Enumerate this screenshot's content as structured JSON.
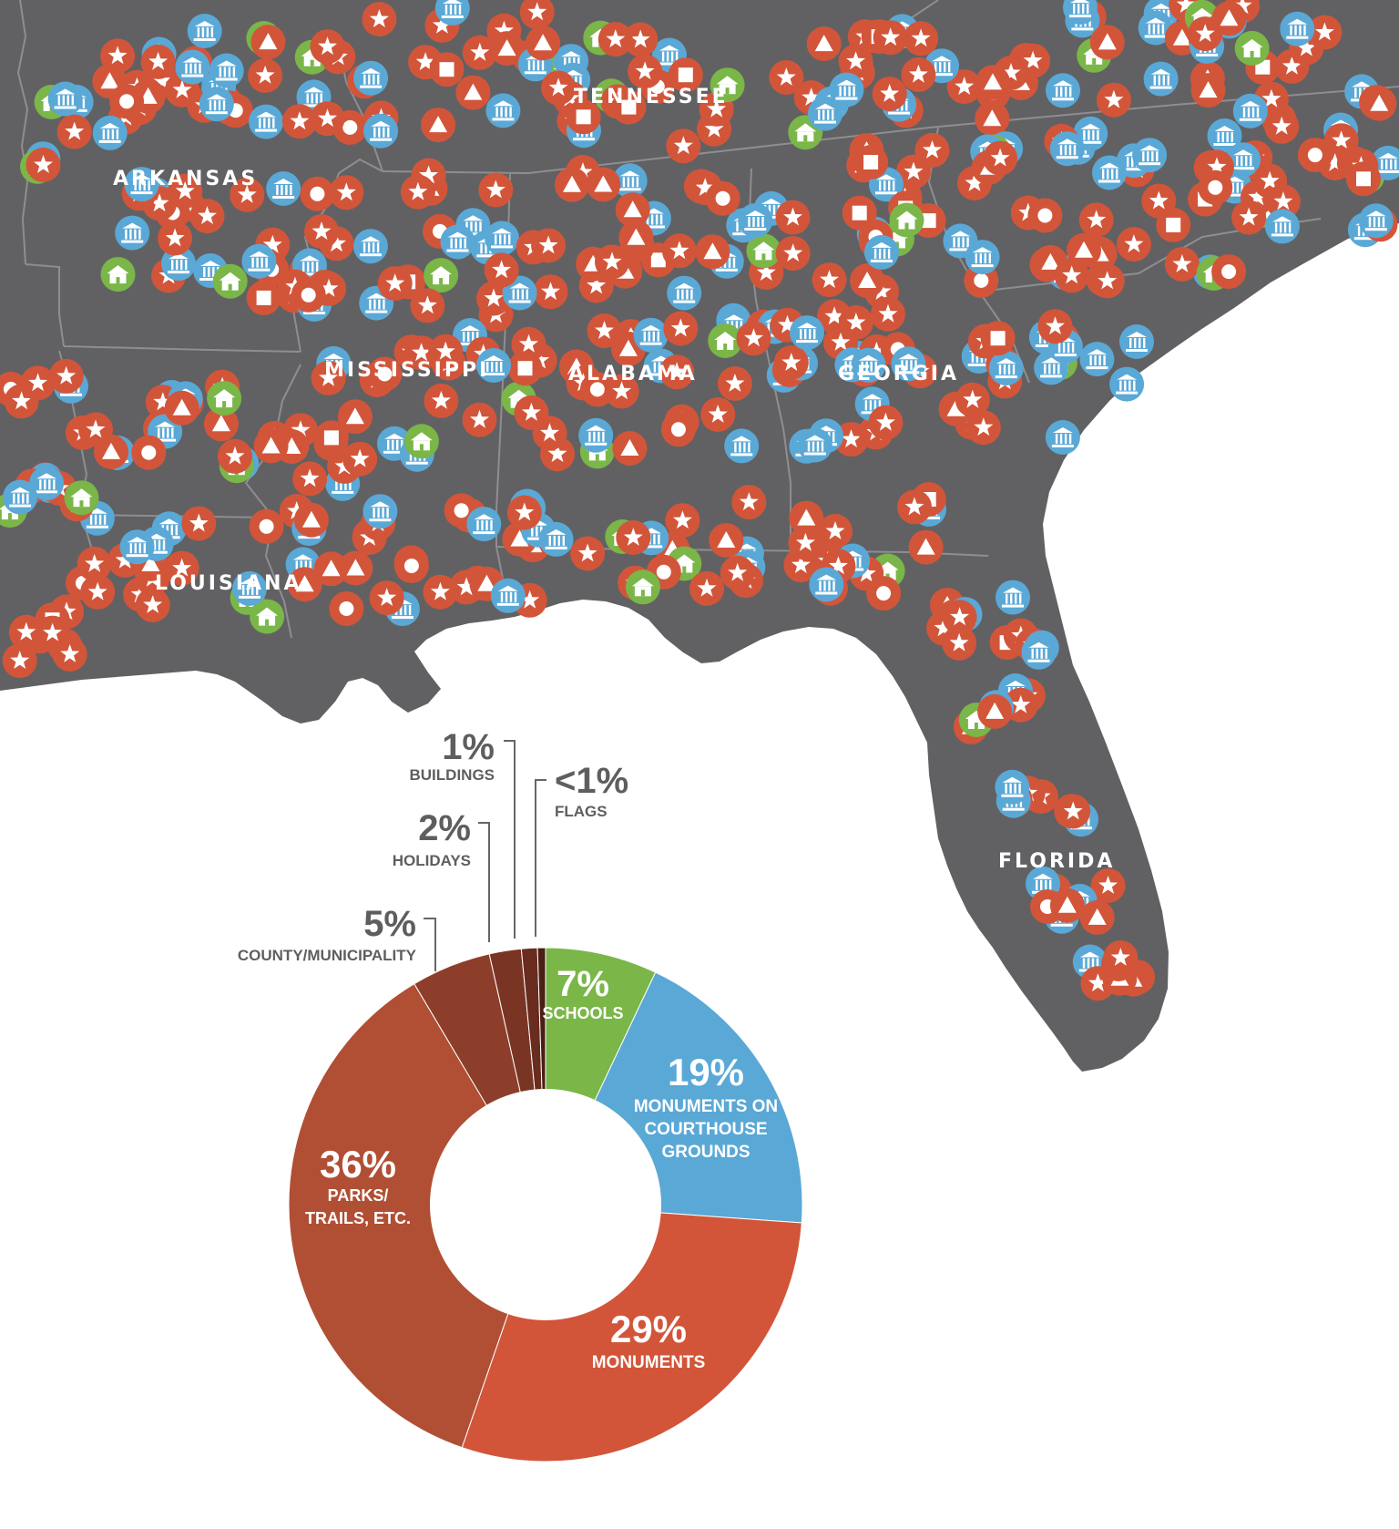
{
  "map": {
    "state_labels": [
      {
        "id": "arkansas",
        "text": "ARKANSAS"
      },
      {
        "id": "tennessee",
        "text": "TENNESSEE"
      },
      {
        "id": "mississippi",
        "text": "MISSISSIPPI"
      },
      {
        "id": "alabama",
        "text": "ALABAMA"
      },
      {
        "id": "georgia",
        "text": "GEORGIA"
      },
      {
        "id": "louisiana",
        "text": "LOUISIANA"
      },
      {
        "id": "florida",
        "text": "FLORIDA"
      }
    ],
    "marker_types": [
      {
        "name": "courthouse-monument",
        "color": "#5aa8d6",
        "icon": "courthouse-icon"
      },
      {
        "name": "monument",
        "color": "#d2553a",
        "icon": "star-icon"
      },
      {
        "name": "park",
        "color": "#d2553a",
        "icon": "triangle-icon"
      },
      {
        "name": "county-municipality",
        "color": "#d2553a",
        "icon": "circle-icon"
      },
      {
        "name": "building",
        "color": "#d2553a",
        "icon": "square-icon"
      },
      {
        "name": "school",
        "color": "#7ab648",
        "icon": "schoolhouse-icon"
      }
    ],
    "colors": {
      "land": "#616163",
      "borders": "#8a8a8c",
      "water": "#ffffff"
    }
  },
  "chart_data": {
    "type": "pie",
    "subtype": "donut",
    "slices": [
      {
        "label": "SCHOOLS",
        "pct_text": "7%",
        "value": 7,
        "color": "#7ab648"
      },
      {
        "label": "MONUMENTS ON COURTHOUSE GROUNDS",
        "pct_text": "19%",
        "value": 19,
        "color": "#5aa8d6"
      },
      {
        "label": "MONUMENTS",
        "pct_text": "29%",
        "value": 29,
        "color": "#d2553a"
      },
      {
        "label": "PARKS/ TRAILS, ETC.",
        "pct_text": "36%",
        "value": 36,
        "color": "#b04f34"
      },
      {
        "label": "COUNTY/MUNICIPALITY",
        "pct_text": "5%",
        "value": 5,
        "color": "#8d3e2a"
      },
      {
        "label": "HOLIDAYS",
        "pct_text": "2%",
        "value": 2,
        "color": "#7a3424"
      },
      {
        "label": "BUILDINGS",
        "pct_text": "1%",
        "value": 1,
        "color": "#692c1f"
      },
      {
        "label": "FLAGS",
        "pct_text": "<1%",
        "value": 0.5,
        "color": "#4b1f16"
      }
    ],
    "slice_order": "clockwise from top"
  }
}
